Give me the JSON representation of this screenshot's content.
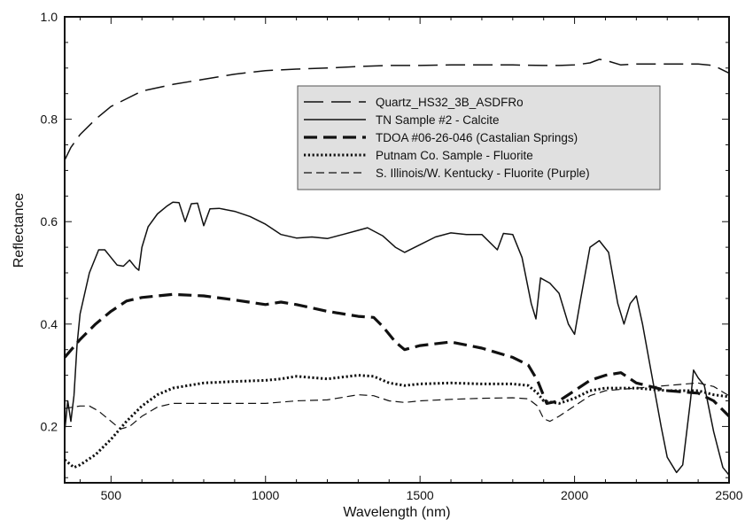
{
  "chart_data": {
    "type": "line",
    "title": "",
    "xlabel": "Wavelength (nm)",
    "ylabel": "Reflectance",
    "xlim": [
      350,
      2500
    ],
    "ylim": [
      0.09,
      1.0
    ],
    "x_ticks": [
      500,
      1000,
      1500,
      2000,
      2500
    ],
    "y_ticks": [
      0.2,
      0.4,
      0.6,
      0.8,
      1.0
    ],
    "x_tick_labels": [
      "500",
      "1000",
      "1500",
      "2000",
      "2500"
    ],
    "y_tick_labels": [
      "0.2",
      "0.4",
      "0.6",
      "0.8",
      "1.0"
    ],
    "grid": false,
    "legend_position": "top-right",
    "series": [
      {
        "name": "Quartz_HS32_3B_ASDFRo",
        "style": "long-dash",
        "color": "#111111",
        "points": [
          [
            350,
            0.72
          ],
          [
            370,
            0.745
          ],
          [
            400,
            0.77
          ],
          [
            450,
            0.8
          ],
          [
            500,
            0.825
          ],
          [
            550,
            0.84
          ],
          [
            600,
            0.855
          ],
          [
            700,
            0.868
          ],
          [
            800,
            0.878
          ],
          [
            900,
            0.888
          ],
          [
            1000,
            0.895
          ],
          [
            1100,
            0.898
          ],
          [
            1200,
            0.9
          ],
          [
            1300,
            0.903
          ],
          [
            1400,
            0.905
          ],
          [
            1500,
            0.905
          ],
          [
            1600,
            0.906
          ],
          [
            1700,
            0.906
          ],
          [
            1800,
            0.906
          ],
          [
            1900,
            0.905
          ],
          [
            1950,
            0.905
          ],
          [
            2000,
            0.906
          ],
          [
            2050,
            0.91
          ],
          [
            2080,
            0.917
          ],
          [
            2100,
            0.915
          ],
          [
            2150,
            0.906
          ],
          [
            2200,
            0.908
          ],
          [
            2300,
            0.908
          ],
          [
            2400,
            0.908
          ],
          [
            2450,
            0.905
          ],
          [
            2500,
            0.89
          ]
        ]
      },
      {
        "name": "TN Sample #2 - Calcite",
        "style": "solid",
        "color": "#111111",
        "points": [
          [
            350,
            0.19
          ],
          [
            360,
            0.25
          ],
          [
            370,
            0.21
          ],
          [
            380,
            0.26
          ],
          [
            390,
            0.36
          ],
          [
            400,
            0.42
          ],
          [
            430,
            0.5
          ],
          [
            460,
            0.545
          ],
          [
            480,
            0.545
          ],
          [
            500,
            0.53
          ],
          [
            520,
            0.515
          ],
          [
            540,
            0.513
          ],
          [
            560,
            0.525
          ],
          [
            580,
            0.51
          ],
          [
            590,
            0.505
          ],
          [
            600,
            0.55
          ],
          [
            620,
            0.59
          ],
          [
            650,
            0.615
          ],
          [
            680,
            0.63
          ],
          [
            700,
            0.638
          ],
          [
            720,
            0.637
          ],
          [
            740,
            0.6
          ],
          [
            760,
            0.635
          ],
          [
            780,
            0.636
          ],
          [
            800,
            0.592
          ],
          [
            820,
            0.625
          ],
          [
            850,
            0.626
          ],
          [
            900,
            0.62
          ],
          [
            950,
            0.61
          ],
          [
            1000,
            0.595
          ],
          [
            1050,
            0.575
          ],
          [
            1100,
            0.568
          ],
          [
            1150,
            0.57
          ],
          [
            1200,
            0.567
          ],
          [
            1250,
            0.575
          ],
          [
            1300,
            0.583
          ],
          [
            1330,
            0.588
          ],
          [
            1380,
            0.572
          ],
          [
            1420,
            0.55
          ],
          [
            1450,
            0.54
          ],
          [
            1500,
            0.555
          ],
          [
            1550,
            0.57
          ],
          [
            1600,
            0.578
          ],
          [
            1650,
            0.575
          ],
          [
            1700,
            0.575
          ],
          [
            1750,
            0.545
          ],
          [
            1770,
            0.577
          ],
          [
            1800,
            0.575
          ],
          [
            1830,
            0.53
          ],
          [
            1860,
            0.44
          ],
          [
            1875,
            0.41
          ],
          [
            1890,
            0.49
          ],
          [
            1920,
            0.48
          ],
          [
            1950,
            0.46
          ],
          [
            1980,
            0.4
          ],
          [
            2000,
            0.38
          ],
          [
            2020,
            0.45
          ],
          [
            2050,
            0.55
          ],
          [
            2080,
            0.563
          ],
          [
            2110,
            0.54
          ],
          [
            2140,
            0.44
          ],
          [
            2160,
            0.4
          ],
          [
            2180,
            0.44
          ],
          [
            2200,
            0.455
          ],
          [
            2220,
            0.4
          ],
          [
            2250,
            0.3
          ],
          [
            2280,
            0.2
          ],
          [
            2300,
            0.14
          ],
          [
            2330,
            0.11
          ],
          [
            2350,
            0.125
          ],
          [
            2375,
            0.25
          ],
          [
            2385,
            0.31
          ],
          [
            2400,
            0.295
          ],
          [
            2420,
            0.28
          ],
          [
            2450,
            0.19
          ],
          [
            2480,
            0.12
          ],
          [
            2500,
            0.105
          ]
        ]
      },
      {
        "name": "TDOA #06-26-046 (Castalian Springs)",
        "style": "heavy-dash",
        "color": "#111111",
        "points": [
          [
            350,
            0.335
          ],
          [
            400,
            0.37
          ],
          [
            450,
            0.4
          ],
          [
            500,
            0.425
          ],
          [
            550,
            0.445
          ],
          [
            600,
            0.452
          ],
          [
            700,
            0.458
          ],
          [
            800,
            0.455
          ],
          [
            900,
            0.447
          ],
          [
            1000,
            0.438
          ],
          [
            1050,
            0.443
          ],
          [
            1100,
            0.438
          ],
          [
            1200,
            0.425
          ],
          [
            1300,
            0.415
          ],
          [
            1350,
            0.413
          ],
          [
            1380,
            0.395
          ],
          [
            1420,
            0.365
          ],
          [
            1450,
            0.35
          ],
          [
            1500,
            0.358
          ],
          [
            1600,
            0.365
          ],
          [
            1700,
            0.353
          ],
          [
            1800,
            0.335
          ],
          [
            1850,
            0.32
          ],
          [
            1880,
            0.29
          ],
          [
            1910,
            0.245
          ],
          [
            1950,
            0.25
          ],
          [
            2000,
            0.27
          ],
          [
            2050,
            0.29
          ],
          [
            2100,
            0.3
          ],
          [
            2150,
            0.305
          ],
          [
            2200,
            0.285
          ],
          [
            2300,
            0.27
          ],
          [
            2400,
            0.265
          ],
          [
            2450,
            0.25
          ],
          [
            2500,
            0.22
          ]
        ]
      },
      {
        "name": "Putnam Co. Sample - Fluorite",
        "style": "dotted",
        "color": "#111111",
        "points": [
          [
            350,
            0.135
          ],
          [
            380,
            0.12
          ],
          [
            400,
            0.125
          ],
          [
            450,
            0.145
          ],
          [
            500,
            0.175
          ],
          [
            550,
            0.21
          ],
          [
            600,
            0.24
          ],
          [
            650,
            0.262
          ],
          [
            700,
            0.275
          ],
          [
            800,
            0.285
          ],
          [
            900,
            0.288
          ],
          [
            1000,
            0.29
          ],
          [
            1050,
            0.293
          ],
          [
            1100,
            0.298
          ],
          [
            1200,
            0.293
          ],
          [
            1300,
            0.3
          ],
          [
            1350,
            0.298
          ],
          [
            1400,
            0.285
          ],
          [
            1450,
            0.28
          ],
          [
            1500,
            0.283
          ],
          [
            1600,
            0.285
          ],
          [
            1700,
            0.283
          ],
          [
            1800,
            0.283
          ],
          [
            1850,
            0.28
          ],
          [
            1880,
            0.265
          ],
          [
            1900,
            0.25
          ],
          [
            1950,
            0.245
          ],
          [
            2000,
            0.255
          ],
          [
            2050,
            0.27
          ],
          [
            2100,
            0.275
          ],
          [
            2200,
            0.275
          ],
          [
            2300,
            0.27
          ],
          [
            2400,
            0.27
          ],
          [
            2450,
            0.262
          ],
          [
            2500,
            0.258
          ]
        ]
      },
      {
        "name": "S. Illinois/W. Kentucky - Fluorite (Purple)",
        "style": "dash",
        "color": "#111111",
        "points": [
          [
            350,
            0.235
          ],
          [
            400,
            0.24
          ],
          [
            430,
            0.24
          ],
          [
            460,
            0.23
          ],
          [
            500,
            0.21
          ],
          [
            530,
            0.195
          ],
          [
            560,
            0.2
          ],
          [
            600,
            0.22
          ],
          [
            650,
            0.238
          ],
          [
            700,
            0.245
          ],
          [
            800,
            0.245
          ],
          [
            900,
            0.245
          ],
          [
            1000,
            0.245
          ],
          [
            1100,
            0.25
          ],
          [
            1200,
            0.252
          ],
          [
            1300,
            0.262
          ],
          [
            1350,
            0.26
          ],
          [
            1400,
            0.25
          ],
          [
            1450,
            0.247
          ],
          [
            1500,
            0.25
          ],
          [
            1600,
            0.253
          ],
          [
            1700,
            0.255
          ],
          [
            1800,
            0.256
          ],
          [
            1850,
            0.254
          ],
          [
            1880,
            0.24
          ],
          [
            1900,
            0.215
          ],
          [
            1920,
            0.21
          ],
          [
            1950,
            0.22
          ],
          [
            2000,
            0.24
          ],
          [
            2050,
            0.26
          ],
          [
            2100,
            0.27
          ],
          [
            2200,
            0.275
          ],
          [
            2300,
            0.28
          ],
          [
            2400,
            0.285
          ],
          [
            2450,
            0.278
          ],
          [
            2500,
            0.26
          ]
        ]
      }
    ]
  }
}
